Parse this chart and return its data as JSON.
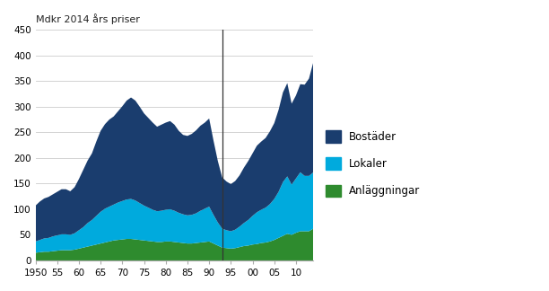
{
  "title": "Mdkr 2014 års priser",
  "years": [
    1950,
    1951,
    1952,
    1953,
    1954,
    1955,
    1956,
    1957,
    1958,
    1959,
    1960,
    1961,
    1962,
    1963,
    1964,
    1965,
    1966,
    1967,
    1968,
    1969,
    1970,
    1971,
    1972,
    1973,
    1974,
    1975,
    1976,
    1977,
    1978,
    1979,
    1980,
    1981,
    1982,
    1983,
    1984,
    1985,
    1986,
    1987,
    1988,
    1989,
    1990,
    1991,
    1992,
    1993,
    1994,
    1995,
    1996,
    1997,
    1998,
    1999,
    2000,
    2001,
    2002,
    2003,
    2004,
    2005,
    2006,
    2007,
    2008,
    2009,
    2010,
    2011,
    2012,
    2013,
    2014
  ],
  "bostader": [
    70,
    75,
    78,
    80,
    82,
    85,
    88,
    88,
    85,
    90,
    100,
    112,
    122,
    130,
    145,
    158,
    165,
    170,
    172,
    178,
    185,
    193,
    198,
    195,
    188,
    180,
    175,
    170,
    165,
    168,
    170,
    172,
    168,
    160,
    155,
    155,
    158,
    162,
    166,
    168,
    172,
    145,
    120,
    100,
    95,
    92,
    95,
    100,
    108,
    115,
    122,
    130,
    133,
    136,
    142,
    148,
    160,
    175,
    182,
    158,
    162,
    172,
    178,
    190,
    215
  ],
  "lokaler": [
    22,
    24,
    26,
    27,
    29,
    30,
    31,
    31,
    30,
    32,
    36,
    40,
    46,
    50,
    56,
    62,
    66,
    68,
    70,
    73,
    75,
    77,
    78,
    76,
    72,
    68,
    65,
    62,
    60,
    61,
    62,
    63,
    61,
    58,
    56,
    55,
    56,
    58,
    62,
    65,
    68,
    56,
    45,
    37,
    35,
    34,
    36,
    40,
    45,
    50,
    56,
    62,
    65,
    68,
    73,
    80,
    90,
    105,
    112,
    98,
    106,
    115,
    108,
    108,
    110
  ],
  "anlaggningar": [
    15,
    16,
    17,
    17,
    18,
    19,
    20,
    20,
    20,
    21,
    23,
    25,
    27,
    29,
    31,
    33,
    35,
    37,
    39,
    40,
    41,
    42,
    42,
    41,
    40,
    39,
    38,
    37,
    36,
    36,
    37,
    37,
    36,
    35,
    34,
    33,
    33,
    34,
    35,
    36,
    37,
    33,
    29,
    25,
    24,
    23,
    24,
    26,
    28,
    29,
    31,
    32,
    34,
    35,
    37,
    40,
    44,
    48,
    52,
    50,
    54,
    57,
    57,
    57,
    62
  ],
  "color_bostader": "#1a3d6e",
  "color_lokaler": "#00aadd",
  "color_anlaggningar": "#2e8b2e",
  "vline_x": 1993,
  "ylim": [
    0,
    450
  ],
  "yticks": [
    0,
    50,
    100,
    150,
    200,
    250,
    300,
    350,
    400,
    450
  ],
  "xticks": [
    1950,
    1955,
    1960,
    1965,
    1970,
    1975,
    1980,
    1985,
    1990,
    1995,
    2000,
    2005,
    2010
  ],
  "xticklabels": [
    "1950",
    "55",
    "60",
    "65",
    "70",
    "75",
    "80",
    "85",
    "90",
    "95",
    "00",
    "05",
    "10"
  ],
  "legend_labels": [
    "Bostäder",
    "Lokaler",
    "Anläggningar"
  ]
}
